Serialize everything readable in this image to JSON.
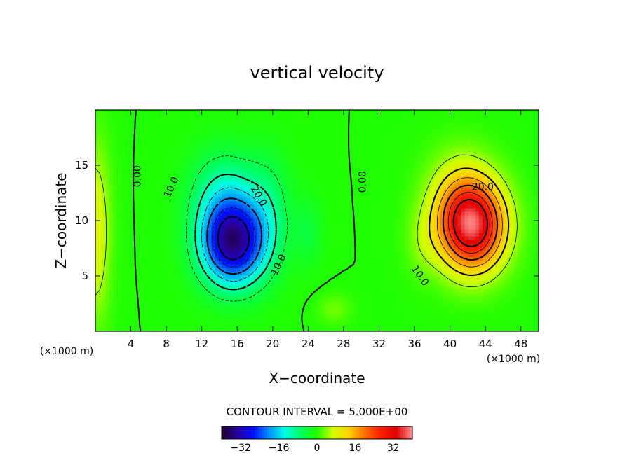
{
  "chart_data": {
    "type": "heatmap",
    "title": "vertical velocity",
    "xlabel": "X−coordinate",
    "ylabel": "Z−coordinate",
    "x_unit": "(×1000 m)",
    "y_unit": "(×1000 m)",
    "xlim": [
      0,
      50
    ],
    "ylim": [
      0,
      20
    ],
    "x_ticks": [
      4,
      8,
      12,
      16,
      20,
      24,
      28,
      32,
      36,
      40,
      44,
      48
    ],
    "y_ticks": [
      5,
      10,
      15
    ],
    "contour_interval_label": "CONTOUR INTERVAL = 5.000E+00",
    "contour_labels": [
      {
        "text": "0.00",
        "x": 4.8,
        "y": 14.0,
        "angle": -90
      },
      {
        "text": "10.0",
        "x": 8.6,
        "y": 13.0,
        "angle": -65
      },
      {
        "text": "20.0",
        "x": 18.4,
        "y": 12.2,
        "angle": 60
      },
      {
        "text": "10.0",
        "x": 20.7,
        "y": 6.0,
        "angle": -65
      },
      {
        "text": "0.00",
        "x": 30.2,
        "y": 13.5,
        "angle": -90
      },
      {
        "text": "20.0",
        "x": 43.7,
        "y": 13.0,
        "angle": 0
      },
      {
        "text": "10.0",
        "x": 36.6,
        "y": 5.0,
        "angle": 55
      }
    ],
    "extrema": {
      "min": {
        "x": 15.5,
        "y": 8.0,
        "value": -34
      },
      "max": {
        "x": 42.5,
        "y": 9.5,
        "value": 35
      }
    },
    "colorbar": {
      "range": [
        -40,
        40
      ],
      "tick_labels": [
        "−32",
        "−16",
        "0",
        "16",
        "32"
      ],
      "tick_values": [
        -32,
        -16,
        0,
        16,
        32
      ]
    },
    "colormap": [
      "#1b0028",
      "#2a00a0",
      "#0010ff",
      "#0090ff",
      "#00ffe0",
      "#00ff60",
      "#20ff00",
      "#d0ff00",
      "#ffd000",
      "#ff7000",
      "#ff2000",
      "#e00000",
      "#ff9090"
    ]
  }
}
